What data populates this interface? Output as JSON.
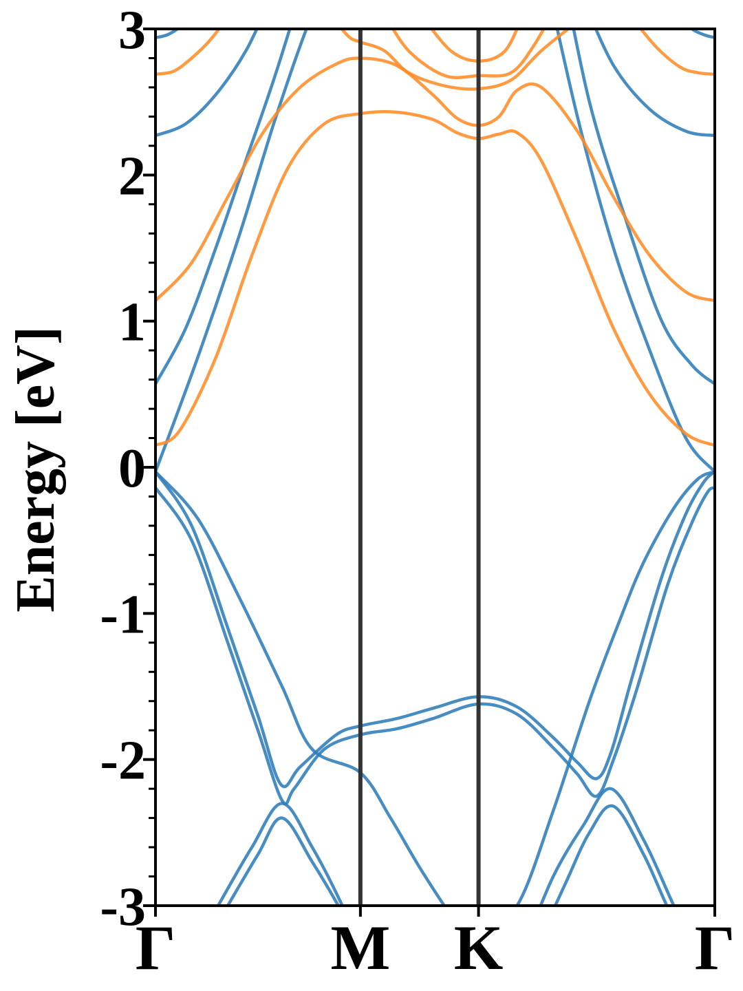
{
  "chart_data": {
    "type": "line",
    "title": "",
    "xlabel": "",
    "ylabel": "Energy [eV]",
    "ylim": [
      -3,
      3
    ],
    "yticks": [
      "-3",
      "-2",
      "-1",
      "0",
      "1",
      "2",
      "3"
    ],
    "y_minor_step": 0.2,
    "grid": false,
    "legend": "none",
    "k_points": [
      {
        "label": "Γ",
        "x": 0
      },
      {
        "label": "M",
        "x": 1.7
      },
      {
        "label": "K",
        "x": 2.68
      },
      {
        "label": "Γ",
        "x": 4.64
      }
    ],
    "colors": {
      "blue": "#2f7dba",
      "orange": "#ff8c25",
      "kpath_line": "#333333",
      "axes": "#000000"
    },
    "series": [
      {
        "color": "blue",
        "x": [
          0,
          0.35,
          0.7,
          1.05,
          1.3,
          1.7,
          1.95,
          2.2,
          2.48,
          2.68
        ],
        "y": [
          -0.03,
          -0.35,
          -0.9,
          -1.5,
          -1.93,
          -2.09,
          -2.4,
          -2.75,
          -3.1,
          -3.3
        ]
      },
      {
        "color": "blue",
        "x": [
          2.68,
          3.0,
          3.3,
          3.6,
          3.85,
          4.05,
          4.3,
          4.5,
          4.64
        ],
        "y": [
          -3.2,
          -3.0,
          -2.35,
          -1.6,
          -1.05,
          -0.65,
          -0.28,
          -0.08,
          -0.03
        ]
      },
      {
        "color": "blue",
        "x": [
          0,
          0.3,
          0.6,
          0.85,
          1.04,
          1.2,
          1.5,
          1.7,
          2.0,
          2.3,
          2.68,
          3.0,
          3.3,
          3.5,
          3.66,
          3.78,
          3.95,
          4.2,
          4.4,
          4.55,
          4.64
        ],
        "y": [
          -0.03,
          -0.4,
          -1.1,
          -1.7,
          -2.17,
          -2.05,
          -1.83,
          -1.77,
          -1.72,
          -1.65,
          -1.57,
          -1.64,
          -1.85,
          -2.02,
          -2.13,
          -1.95,
          -1.45,
          -0.75,
          -0.32,
          -0.1,
          -0.03
        ]
      },
      {
        "color": "blue",
        "x": [
          0,
          0.3,
          0.6,
          0.85,
          1.05,
          1.15,
          1.4,
          1.7,
          2.0,
          2.3,
          2.68,
          3.0,
          3.3,
          3.5,
          3.66,
          3.8,
          4.0,
          4.25,
          4.45,
          4.58,
          4.64
        ],
        "y": [
          -0.14,
          -0.5,
          -1.2,
          -1.8,
          -2.28,
          -2.2,
          -1.93,
          -1.83,
          -1.79,
          -1.72,
          -1.62,
          -1.69,
          -1.92,
          -2.1,
          -2.25,
          -2.0,
          -1.5,
          -0.8,
          -0.38,
          -0.17,
          -0.14
        ]
      },
      {
        "color": "blue",
        "x": [
          0.52,
          0.8,
          1.05,
          1.3,
          1.55,
          1.7
        ],
        "y": [
          -3.0,
          -2.6,
          -2.3,
          -2.6,
          -3.0,
          -3.3
        ]
      },
      {
        "color": "blue",
        "x": [
          0.6,
          0.85,
          1.05,
          1.3,
          1.55,
          1.7
        ],
        "y": [
          -3.0,
          -2.65,
          -2.4,
          -2.7,
          -3.05,
          -3.3
        ]
      },
      {
        "color": "blue",
        "x": [
          3.05,
          3.3,
          3.55,
          3.78,
          4.05,
          4.3,
          4.64
        ],
        "y": [
          -3.3,
          -2.8,
          -2.45,
          -2.2,
          -2.55,
          -3.0,
          -3.6
        ]
      },
      {
        "color": "blue",
        "x": [
          3.15,
          3.4,
          3.6,
          3.8,
          4.05,
          4.3,
          4.64
        ],
        "y": [
          -3.3,
          -2.85,
          -2.5,
          -2.32,
          -2.65,
          -3.1,
          -3.6
        ]
      },
      {
        "color": "blue",
        "x": [
          0,
          0.25,
          0.5,
          0.75,
          1.0,
          1.3
        ],
        "y": [
          0.57,
          0.95,
          1.5,
          2.1,
          2.7,
          3.5
        ]
      },
      {
        "color": "blue",
        "x": [
          3.35,
          3.6,
          3.9,
          4.2,
          4.45,
          4.64
        ],
        "y": [
          3.5,
          2.5,
          1.7,
          1.0,
          0.7,
          0.57
        ]
      },
      {
        "color": "blue",
        "x": [
          0,
          0.35,
          0.7,
          1.0,
          1.3,
          1.55
        ],
        "y": [
          -0.03,
          0.75,
          1.6,
          2.4,
          3.1,
          3.5
        ]
      },
      {
        "color": "blue",
        "x": [
          3.2,
          3.5,
          3.8,
          4.1,
          4.4,
          4.64
        ],
        "y": [
          3.5,
          2.4,
          1.5,
          0.8,
          0.2,
          -0.03
        ]
      },
      {
        "color": "blue",
        "x": [
          0,
          0.25,
          0.5,
          0.75,
          0.95
        ],
        "y": [
          2.27,
          2.35,
          2.55,
          2.85,
          3.2
        ]
      },
      {
        "color": "blue",
        "x": [
          3.55,
          3.8,
          4.1,
          4.4,
          4.64
        ],
        "y": [
          3.2,
          2.75,
          2.45,
          2.3,
          2.27
        ]
      },
      {
        "color": "blue",
        "x": [
          0,
          0.1,
          0.2,
          0.3
        ],
        "y": [
          2.94,
          2.96,
          3.01,
          3.08
        ]
      },
      {
        "color": "blue",
        "x": [
          4.35,
          4.45,
          4.55,
          4.64
        ],
        "y": [
          3.08,
          3.0,
          2.96,
          2.94
        ]
      },
      {
        "color": "orange",
        "x": [
          0,
          0.2,
          0.5,
          0.8,
          1.1,
          1.4,
          1.7,
          2.0,
          2.3,
          2.5,
          2.68,
          2.85,
          3.0,
          3.2,
          3.5,
          3.8,
          4.1,
          4.4,
          4.64
        ],
        "y": [
          0.15,
          0.25,
          0.75,
          1.45,
          2.05,
          2.35,
          2.42,
          2.43,
          2.38,
          2.29,
          2.25,
          2.28,
          2.29,
          2.1,
          1.55,
          0.95,
          0.5,
          0.23,
          0.15
        ]
      },
      {
        "color": "orange",
        "x": [
          0,
          0.3,
          0.6,
          0.9,
          1.2,
          1.5,
          1.7,
          2.0,
          2.3,
          2.5,
          2.68,
          2.85,
          3.0,
          3.2,
          3.5,
          3.8,
          4.1,
          4.4,
          4.64
        ],
        "y": [
          1.14,
          1.4,
          1.85,
          2.3,
          2.6,
          2.76,
          2.8,
          2.75,
          2.55,
          2.39,
          2.34,
          2.4,
          2.58,
          2.6,
          2.3,
          1.85,
          1.45,
          1.2,
          1.14
        ]
      },
      {
        "color": "orange",
        "x": [
          0,
          0.15,
          0.3,
          0.45,
          0.6
        ],
        "y": [
          2.69,
          2.71,
          2.8,
          2.92,
          3.08
        ]
      },
      {
        "color": "orange",
        "x": [
          3.95,
          4.15,
          4.35,
          4.5,
          4.64
        ],
        "y": [
          3.08,
          2.88,
          2.74,
          2.7,
          2.69
        ]
      },
      {
        "color": "orange",
        "x": [
          1.45,
          1.6,
          1.7,
          1.9,
          2.1,
          2.4,
          2.68,
          2.95,
          3.2,
          3.5
        ],
        "y": [
          3.1,
          2.95,
          2.91,
          2.85,
          2.7,
          2.61,
          2.59,
          2.65,
          2.85,
          3.05
        ]
      },
      {
        "color": "orange",
        "x": [
          1.9,
          2.1,
          2.4,
          2.68,
          2.95,
          3.15,
          3.35
        ],
        "y": [
          3.1,
          2.85,
          2.68,
          2.68,
          2.7,
          2.9,
          3.2
        ]
      },
      {
        "color": "orange",
        "x": [
          2.2,
          2.45,
          2.68,
          2.9,
          3.05
        ],
        "y": [
          3.1,
          2.85,
          2.78,
          2.85,
          3.1
        ]
      }
    ]
  }
}
